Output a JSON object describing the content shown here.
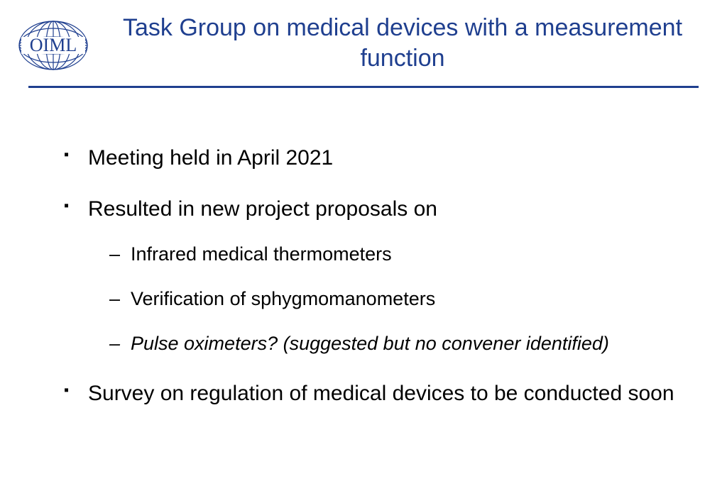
{
  "title": "Task Group on medical devices with a measurement function",
  "logo_text": "OIML",
  "logo_color": "#1f3f8f",
  "title_color": "#1f3f8f",
  "rule_color": "#1f3f8f",
  "body_text_color": "#000000",
  "background_color": "#ffffff",
  "title_fontsize": 34,
  "body_fontsize_level1": 30,
  "body_fontsize_level2": 27,
  "bullets": [
    {
      "text": "Meeting held in April 2021",
      "italic": false
    },
    {
      "text": "Resulted in new project proposals on",
      "italic": false,
      "children": [
        {
          "text": "Infrared medical thermometers",
          "italic": false
        },
        {
          "text": "Verification of sphygmomanometers",
          "italic": false
        },
        {
          "text": "Pulse oximeters? (suggested but no convener identified)",
          "italic": true
        }
      ]
    },
    {
      "text": "Survey on regulation of medical devices to be conducted soon",
      "italic": false
    }
  ]
}
